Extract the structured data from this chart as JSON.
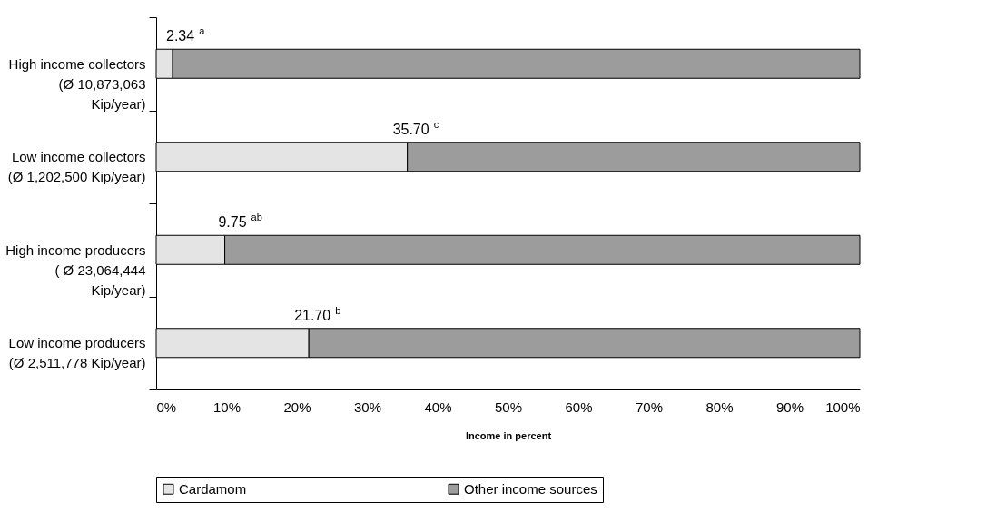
{
  "chart_data": {
    "type": "bar",
    "orientation": "horizontal",
    "stacked": true,
    "categories": [
      "High income collectors\n(Ø 10,873,063\nKip/year)",
      "Low income collectors\n(Ø 1,202,500 Kip/year)",
      "High income producers\n( Ø 23,064,444\nKip/year)",
      "Low income producers\n(Ø 2,511,778 Kip/year)"
    ],
    "series": [
      {
        "name": "Cardamom",
        "color": "#e4e4e4",
        "values": [
          2.34,
          35.7,
          9.75,
          21.7
        ],
        "value_labels": [
          "2.34 $^{a}$",
          "35.70 $^{c}$",
          "9.75 $^{ab}$",
          "21.70 $^{b}$"
        ]
      },
      {
        "name": "Other income sources",
        "color": "#9c9c9c",
        "values": [
          97.66,
          64.3,
          90.25,
          78.3
        ]
      }
    ],
    "xlabel": "Income in percent",
    "xlim": [
      0,
      100
    ],
    "xticks": [
      {
        "value": 0,
        "label": "0%"
      },
      {
        "value": 10,
        "label": "10%"
      },
      {
        "value": 20,
        "label": "20%"
      },
      {
        "value": 30,
        "label": "30%"
      },
      {
        "value": 40,
        "label": "40%"
      },
      {
        "value": 50,
        "label": "50%"
      },
      {
        "value": 60,
        "label": "60%"
      },
      {
        "value": 70,
        "label": "70%"
      },
      {
        "value": 80,
        "label": "80%"
      },
      {
        "value": 90,
        "label": "90%"
      },
      {
        "value": 100,
        "label": "100%"
      }
    ],
    "grid": false,
    "legend": "bottom"
  }
}
